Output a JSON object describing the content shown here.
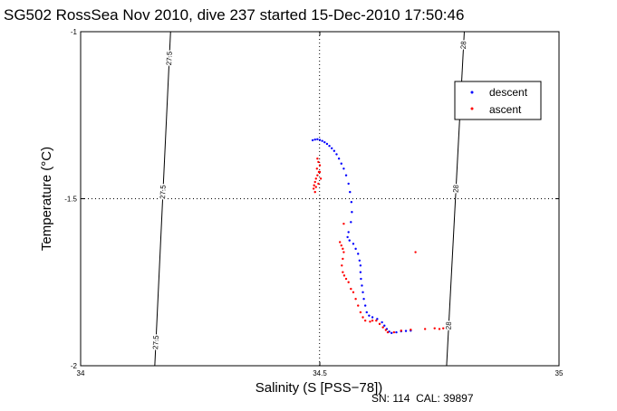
{
  "chart_data": {
    "type": "scatter",
    "title": "SG502 RossSea Nov 2010, dive 237 started 15-Dec-2010 17:50:46",
    "xlabel": "Salinity (S [PSS−78])",
    "ylabel": "Temperature (°C)",
    "xlim": [
      34,
      35
    ],
    "ylim": [
      -2,
      -1
    ],
    "x_ticks": [
      "34",
      "34.5",
      "35"
    ],
    "y_ticks": [
      "-1",
      "-1.5",
      "-2"
    ],
    "grid": "dotted at x=34.5 and y=-1.5",
    "legend_position": "top-right",
    "footer": "SN: 114  CAL: 39897",
    "colors": {
      "descent": "#0000ff",
      "ascent": "#ff0000",
      "contour": "#000000"
    },
    "contours": [
      {
        "label": "27.5",
        "points": [
          [
            34.188,
            -1.0
          ],
          [
            34.155,
            -2.0
          ]
        ],
        "label_y": [
          -1.08,
          -1.48,
          -1.93
        ]
      },
      {
        "label": "28",
        "points": [
          [
            34.802,
            -1.0
          ],
          [
            34.765,
            -2.0
          ]
        ],
        "label_y": [
          -1.04,
          -1.47,
          -1.88
        ]
      }
    ],
    "series": [
      {
        "name": "descent",
        "color": "#0000ff",
        "points": [
          [
            34.485,
            -1.325
          ],
          [
            34.49,
            -1.323
          ],
          [
            34.495,
            -1.322
          ],
          [
            34.5,
            -1.324
          ],
          [
            34.505,
            -1.327
          ],
          [
            34.51,
            -1.331
          ],
          [
            34.515,
            -1.336
          ],
          [
            34.52,
            -1.342
          ],
          [
            34.525,
            -1.349
          ],
          [
            34.53,
            -1.357
          ],
          [
            34.535,
            -1.367
          ],
          [
            34.54,
            -1.38
          ],
          [
            34.545,
            -1.395
          ],
          [
            34.55,
            -1.41
          ],
          [
            34.555,
            -1.43
          ],
          [
            34.56,
            -1.455
          ],
          [
            34.563,
            -1.48
          ],
          [
            34.566,
            -1.51
          ],
          [
            34.567,
            -1.54
          ],
          [
            34.565,
            -1.57
          ],
          [
            34.56,
            -1.6
          ],
          [
            34.558,
            -1.615
          ],
          [
            34.562,
            -1.625
          ],
          [
            34.57,
            -1.635
          ],
          [
            34.575,
            -1.65
          ],
          [
            34.58,
            -1.665
          ],
          [
            34.583,
            -1.685
          ],
          [
            34.585,
            -1.7
          ],
          [
            34.585,
            -1.72
          ],
          [
            34.586,
            -1.74
          ],
          [
            34.588,
            -1.76
          ],
          [
            34.59,
            -1.78
          ],
          [
            34.592,
            -1.8
          ],
          [
            34.595,
            -1.82
          ],
          [
            34.598,
            -1.84
          ],
          [
            34.603,
            -1.85
          ],
          [
            34.61,
            -1.855
          ],
          [
            34.62,
            -1.86
          ],
          [
            34.63,
            -1.87
          ],
          [
            34.635,
            -1.88
          ],
          [
            34.64,
            -1.89
          ],
          [
            34.645,
            -1.898
          ],
          [
            34.65,
            -1.902
          ],
          [
            34.66,
            -1.9
          ],
          [
            34.67,
            -1.897
          ],
          [
            34.68,
            -1.896
          ],
          [
            34.69,
            -1.895
          ]
        ]
      },
      {
        "name": "ascent",
        "color": "#ff0000",
        "points": [
          [
            34.495,
            -1.38
          ],
          [
            34.497,
            -1.39
          ],
          [
            34.5,
            -1.4
          ],
          [
            34.498,
            -1.42
          ],
          [
            34.495,
            -1.43
          ],
          [
            34.492,
            -1.44
          ],
          [
            34.49,
            -1.45
          ],
          [
            34.488,
            -1.46
          ],
          [
            34.487,
            -1.47
          ],
          [
            34.49,
            -1.48
          ],
          [
            34.494,
            -1.41
          ],
          [
            34.5,
            -1.42
          ],
          [
            34.502,
            -1.44
          ],
          [
            34.497,
            -1.455
          ],
          [
            34.492,
            -1.465
          ],
          [
            34.55,
            -1.575
          ],
          [
            34.542,
            -1.63
          ],
          [
            34.545,
            -1.64
          ],
          [
            34.548,
            -1.65
          ],
          [
            34.55,
            -1.66
          ],
          [
            34.548,
            -1.68
          ],
          [
            34.546,
            -1.7
          ],
          [
            34.548,
            -1.72
          ],
          [
            34.551,
            -1.73
          ],
          [
            34.555,
            -1.74
          ],
          [
            34.56,
            -1.75
          ],
          [
            34.565,
            -1.77
          ],
          [
            34.57,
            -1.78
          ],
          [
            34.575,
            -1.8
          ],
          [
            34.58,
            -1.82
          ],
          [
            34.585,
            -1.84
          ],
          [
            34.59,
            -1.855
          ],
          [
            34.595,
            -1.865
          ],
          [
            34.605,
            -1.868
          ],
          [
            34.61,
            -1.865
          ],
          [
            34.618,
            -1.865
          ],
          [
            34.625,
            -1.875
          ],
          [
            34.632,
            -1.885
          ],
          [
            34.638,
            -1.893
          ],
          [
            34.642,
            -1.9
          ],
          [
            34.655,
            -1.9
          ],
          [
            34.67,
            -1.895
          ],
          [
            34.69,
            -1.892
          ],
          [
            34.72,
            -1.89
          ],
          [
            34.74,
            -1.888
          ],
          [
            34.75,
            -1.89
          ],
          [
            34.758,
            -1.888
          ],
          [
            34.7,
            -1.66
          ]
        ]
      }
    ]
  }
}
